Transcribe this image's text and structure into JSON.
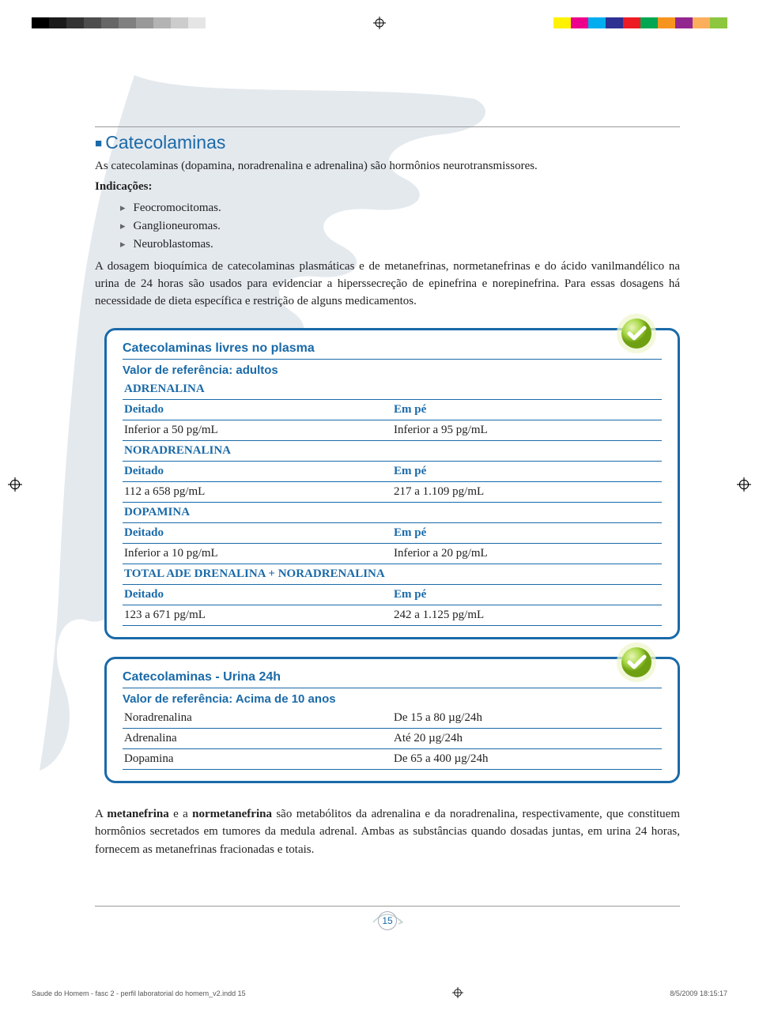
{
  "registration": {
    "gray_swatches": [
      "#000000",
      "#1a1a1a",
      "#333333",
      "#4d4d4d",
      "#666666",
      "#808080",
      "#999999",
      "#b3b3b3",
      "#cccccc",
      "#e5e5e5"
    ],
    "color_swatches": [
      "#fff200",
      "#ec008c",
      "#00aeef",
      "#2e3192",
      "#ed1c24",
      "#00a651",
      "#f7941d",
      "#92278f",
      "#fbaf5d",
      "#8dc63f"
    ]
  },
  "section": {
    "heading": "Catecolaminas",
    "intro": "As catecolaminas (dopamina, noradrenalina e adrenalina) são hormônios neurotransmissores.",
    "indications_label": "Indicações:",
    "bullets": [
      "Feocromocitomas.",
      "Ganglioneuromas.",
      "Neuroblastomas."
    ],
    "body": "A dosagem bioquímica de catecolaminas plasmáticas e de metanefrinas, normetanefrinas e do ácido vanilmandélico na urina de 24 horas são usados para evidenciar a hiperssecreção de epinefrina e norepinefrina. Para essas dosagens há necessidade de dieta específica e restrição de alguns medicamentos."
  },
  "box1": {
    "title": "Catecolaminas livres no plasma",
    "subtitle": "Valor de referência: adultos",
    "categories": [
      {
        "name": "ADRENALINA",
        "left_h": "Deitado",
        "right_h": "Em pé",
        "left_v": "Inferior a 50 pg/mL",
        "right_v": "Inferior a 95 pg/mL"
      },
      {
        "name": "NORADRENALINA",
        "left_h": "Deitado",
        "right_h": "Em pé",
        "left_v": "112 a 658 pg/mL",
        "right_v": "217 a 1.109 pg/mL"
      },
      {
        "name": "DOPAMINA",
        "left_h": "Deitado",
        "right_h": "Em pé",
        "left_v": "Inferior a 10 pg/mL",
        "right_v": "Inferior a 20 pg/mL"
      },
      {
        "name": "TOTAL ADE DRENALINA + NORADRENALINA",
        "left_h": "Deitado",
        "right_h": "Em pé",
        "left_v": "123 a 671 pg/mL",
        "right_v": "242 a 1.125 pg/mL"
      }
    ]
  },
  "box2": {
    "title": "Catecolaminas - Urina 24h",
    "subtitle": "Valor de referência: Acima de 10 anos",
    "rows": [
      {
        "name": "Noradrenalina",
        "value": "De 15 a 80 µg/24h"
      },
      {
        "name": "Adrenalina",
        "value": "Até 20 µg/24h"
      },
      {
        "name": "Dopamina",
        "value": "De 65 a 400 µg/24h"
      }
    ]
  },
  "closing": {
    "bold1": "metanefrina",
    "bold2": "normetanefrina",
    "text_pre": "A ",
    "text_mid": " e a ",
    "text_post": " são metabólitos da adrenalina e da noradrenalina, respectivamente, que constituem hormônios secretados em tumores da medula adrenal. Ambas as substâncias quando dosadas juntas, em urina 24 horas, fornecem as metanefrinas fracionadas e totais."
  },
  "page_number": "15",
  "footer": {
    "file": "Saude do Homem - fasc 2 - perfil laboratorial do homem_v2.indd   15",
    "timestamp": "8/5/2009   18:15:17"
  },
  "colors": {
    "accent": "#1a6aa8",
    "bg_shape": "#b9c8d4",
    "badge_outer": "#d4e886",
    "badge_inner": "#7cb518"
  }
}
